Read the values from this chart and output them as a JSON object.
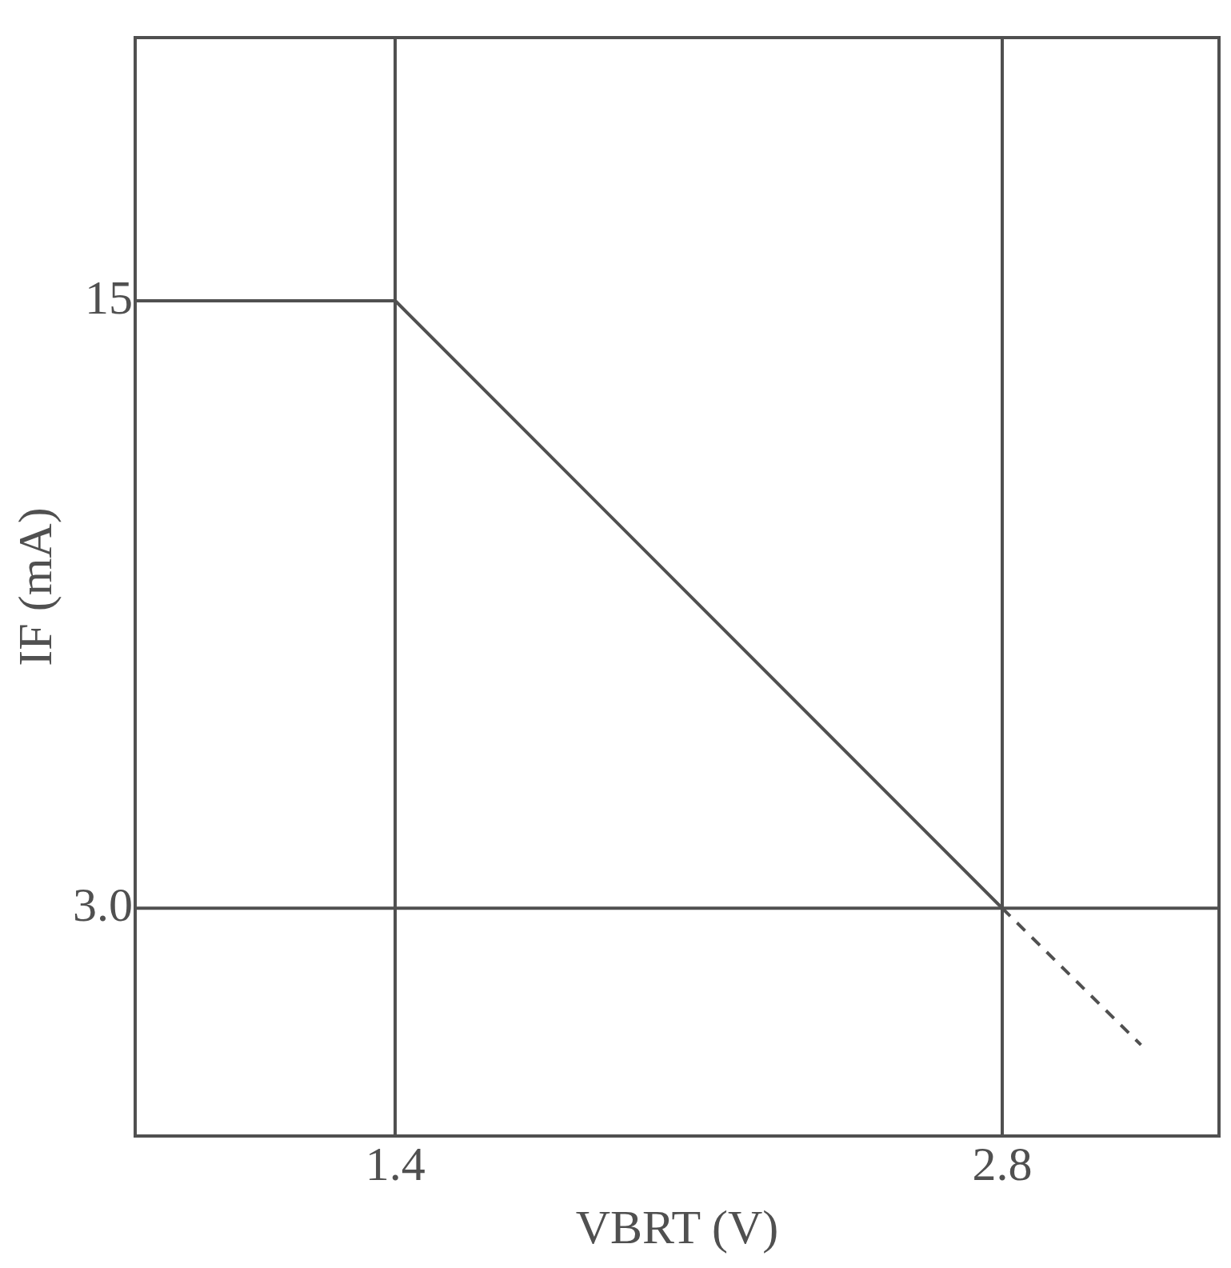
{
  "chart_data": {
    "type": "line",
    "xlabel": "VBRT (V)",
    "ylabel": "IF (mA)",
    "xlim": [
      0.8,
      3.3
    ],
    "ylim": [
      -1.5,
      20.2
    ],
    "xticks": [
      1.4,
      2.8
    ],
    "yticks": [
      {
        "value": 3,
        "label": "3.0"
      },
      {
        "value": 15,
        "label": "15"
      }
    ],
    "grid": "x",
    "marker": "none",
    "legend": false,
    "series": [
      {
        "color": "#505050",
        "x": [
          0.8,
          1.4,
          2.8
        ],
        "values": [
          15,
          15,
          3.0
        ],
        "line_style": "solid"
      },
      {
        "color": "#505050",
        "x": [
          2.8,
          3.12
        ],
        "values": [
          3.0,
          0.3
        ],
        "line_style": "dashed"
      }
    ],
    "ref_lines": [
      {
        "axis": "y",
        "value": 3.0,
        "color": "#505050",
        "line_style": "solid"
      }
    ]
  }
}
